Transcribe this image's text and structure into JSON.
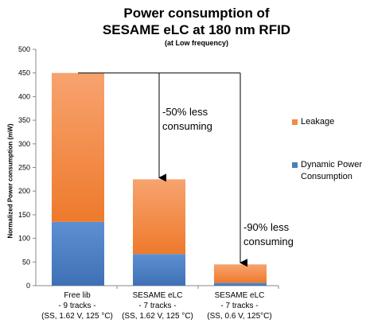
{
  "chart_data": {
    "type": "bar",
    "stacked": true,
    "title_line1": "Power consumption of",
    "title_line2": "SESAME eLC at 180 nm RFID",
    "subtitle": "(at Low frequency)",
    "ylabel": "Normalized Power consumption (mW)",
    "ylim": [
      0,
      500
    ],
    "yticks": [
      0,
      50,
      100,
      150,
      200,
      250,
      300,
      350,
      400,
      450,
      500
    ],
    "categories": [
      {
        "line1": "Free lib",
        "line2": "- 9 tracks -",
        "line3": "(SS, 1.62 V, 125 °C)"
      },
      {
        "line1": "SESAME eLC",
        "line2": "- 7 tracks -",
        "line3": "(SS, 1.62 V, 125 °C)"
      },
      {
        "line1": "SESAME eLC",
        "line2": "- 7 tracks -",
        "line3": "(SS, 0.6 V, 125°C)"
      }
    ],
    "series": [
      {
        "name": "Dynamic Power Consumption",
        "values": [
          135,
          67,
          6
        ],
        "color": "#4a7ebb"
      },
      {
        "name": "Leakage",
        "values": [
          315,
          158,
          39
        ],
        "color": "#f28a43"
      }
    ],
    "legend_position": "right",
    "grid": false,
    "annotations": [
      {
        "line1": "-50% less",
        "line2": "consuming"
      },
      {
        "line1": "-90% less",
        "line2": "consuming"
      }
    ]
  }
}
